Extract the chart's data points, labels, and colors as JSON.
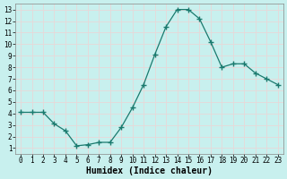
{
  "x": [
    0,
    1,
    2,
    3,
    4,
    5,
    6,
    7,
    8,
    9,
    10,
    11,
    12,
    13,
    14,
    15,
    16,
    17,
    18,
    19,
    20,
    21,
    22,
    23
  ],
  "y": [
    4.1,
    4.1,
    4.1,
    3.1,
    2.5,
    1.2,
    1.3,
    1.5,
    1.5,
    2.8,
    4.5,
    6.5,
    9.1,
    11.5,
    13.0,
    13.0,
    12.2,
    10.2,
    8.0,
    8.3,
    8.3,
    7.5,
    7.0,
    6.5
  ],
  "line_color": "#1a7a6e",
  "marker": "+",
  "marker_size": 4.0,
  "bg_color": "#c8f0ee",
  "grid_color": "#e8d8d8",
  "xlabel": "Humidex (Indice chaleur)",
  "xlabel_fontsize": 7,
  "xlabel_weight": "bold",
  "xlim": [
    -0.5,
    23.5
  ],
  "ylim": [
    0.5,
    13.5
  ],
  "xticks": [
    0,
    1,
    2,
    3,
    4,
    5,
    6,
    7,
    8,
    9,
    10,
    11,
    12,
    13,
    14,
    15,
    16,
    17,
    18,
    19,
    20,
    21,
    22,
    23
  ],
  "yticks": [
    1,
    2,
    3,
    4,
    5,
    6,
    7,
    8,
    9,
    10,
    11,
    12,
    13
  ],
  "tick_fontsize": 5.5
}
